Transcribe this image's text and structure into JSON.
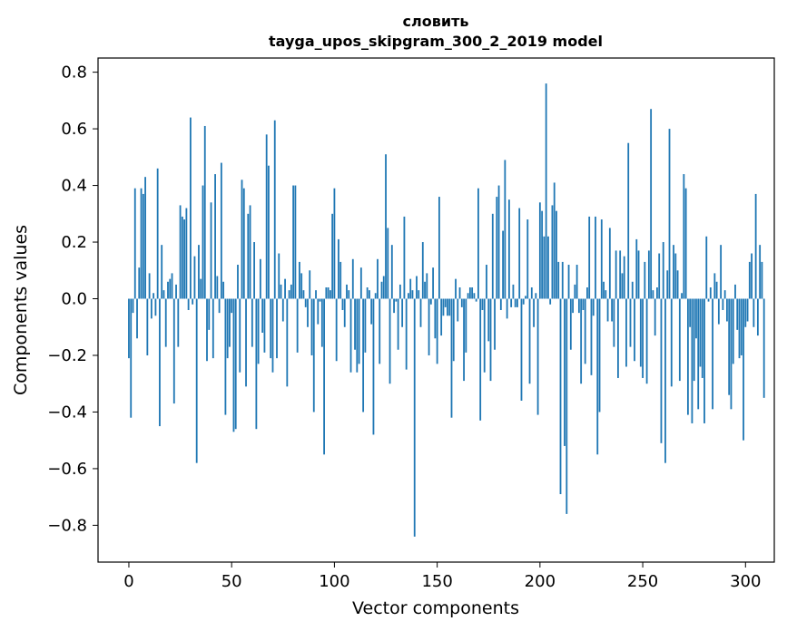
{
  "chart_data": {
    "type": "bar",
    "title": "словить",
    "subtitle": "tayga_upos_skipgram_300_2_2019 model",
    "xlabel": "Vector components",
    "ylabel": "Components values",
    "xlim": [
      -15,
      314
    ],
    "ylim": [
      -0.93,
      0.85
    ],
    "x_ticks": [
      0,
      50,
      100,
      150,
      200,
      250,
      300
    ],
    "x_tick_labels": [
      "0",
      "50",
      "100",
      "150",
      "200",
      "250",
      "300"
    ],
    "y_ticks": [
      -0.8,
      -0.6,
      -0.4,
      -0.2,
      0.0,
      0.2,
      0.4,
      0.6,
      0.8
    ],
    "y_tick_labels": [
      "−0.8",
      "−0.6",
      "−0.4",
      "−0.2",
      "0.0",
      "0.2",
      "0.4",
      "0.6",
      "0.8"
    ],
    "grid": false,
    "bar_color": "#1f77b4",
    "values": [
      -0.21,
      -0.42,
      -0.05,
      0.39,
      -0.14,
      0.11,
      0.39,
      0.37,
      0.43,
      -0.2,
      0.09,
      -0.07,
      0.02,
      -0.06,
      0.46,
      -0.45,
      0.19,
      0.03,
      -0.17,
      0.06,
      0.07,
      0.09,
      -0.37,
      0.05,
      -0.17,
      0.33,
      0.29,
      0.28,
      0.32,
      -0.04,
      0.64,
      -0.02,
      0.15,
      -0.58,
      0.19,
      0.07,
      0.4,
      0.61,
      -0.22,
      -0.11,
      0.34,
      -0.21,
      0.44,
      0.08,
      -0.05,
      0.48,
      0.06,
      -0.41,
      -0.21,
      -0.17,
      -0.05,
      -0.47,
      -0.46,
      0.12,
      -0.26,
      0.42,
      0.39,
      -0.31,
      0.3,
      0.33,
      -0.17,
      0.2,
      -0.46,
      -0.23,
      0.14,
      -0.12,
      -0.19,
      0.58,
      0.47,
      -0.21,
      -0.26,
      0.63,
      -0.21,
      0.16,
      0.05,
      -0.08,
      0.07,
      -0.31,
      0.03,
      0.05,
      0.4,
      0.4,
      -0.19,
      0.13,
      0.09,
      0.03,
      -0.03,
      -0.1,
      0.1,
      -0.2,
      -0.4,
      0.03,
      -0.09,
      -0.01,
      -0.17,
      -0.55,
      0.04,
      0.04,
      0.03,
      0.3,
      0.39,
      -0.22,
      0.21,
      0.13,
      -0.04,
      -0.1,
      0.05,
      0.03,
      -0.26,
      0.14,
      -0.18,
      -0.26,
      -0.23,
      0.11,
      -0.4,
      -0.19,
      0.04,
      0.03,
      -0.09,
      -0.48,
      0.02,
      0.14,
      -0.23,
      0.06,
      0.08,
      0.51,
      0.25,
      -0.3,
      0.19,
      -0.05,
      -0.01,
      -0.18,
      0.05,
      -0.1,
      0.29,
      -0.25,
      0.02,
      0.07,
      0.03,
      -0.84,
      0.08,
      0.03,
      -0.1,
      0.2,
      0.06,
      0.09,
      -0.2,
      -0.02,
      0.11,
      -0.14,
      -0.23,
      0.36,
      -0.13,
      -0.06,
      -0.03,
      -0.06,
      -0.06,
      -0.42,
      -0.22,
      0.07,
      -0.08,
      0.04,
      -0.03,
      -0.29,
      -0.19,
      0.02,
      0.04,
      0.04,
      0.02,
      -0.01,
      0.39,
      -0.43,
      -0.04,
      -0.26,
      0.12,
      -0.15,
      -0.29,
      0.3,
      -0.18,
      0.36,
      0.4,
      -0.04,
      0.24,
      0.49,
      -0.07,
      0.35,
      -0.03,
      0.05,
      -0.03,
      -0.03,
      0.32,
      -0.36,
      -0.02,
      0.01,
      0.28,
      -0.3,
      0.04,
      -0.1,
      0.02,
      -0.41,
      0.34,
      0.31,
      0.22,
      0.76,
      0.22,
      -0.02,
      0.33,
      0.41,
      0.31,
      0.13,
      -0.69,
      0.13,
      -0.52,
      -0.76,
      0.12,
      -0.18,
      -0.05,
      0.05,
      0.12,
      -0.05,
      -0.3,
      -0.04,
      -0.23,
      0.04,
      0.29,
      -0.27,
      -0.06,
      0.29,
      -0.55,
      -0.4,
      0.28,
      0.06,
      0.03,
      -0.08,
      0.25,
      -0.08,
      -0.17,
      0.17,
      -0.28,
      0.17,
      0.09,
      0.15,
      -0.24,
      0.55,
      -0.17,
      0.06,
      -0.22,
      0.21,
      0.17,
      -0.24,
      -0.28,
      0.13,
      -0.3,
      0.17,
      0.67,
      0.03,
      -0.13,
      0.04,
      0.16,
      -0.51,
      0.2,
      -0.58,
      0.1,
      0.6,
      -0.31,
      0.19,
      0.16,
      0.1,
      -0.29,
      0.02,
      0.44,
      0.39,
      -0.41,
      -0.1,
      -0.44,
      -0.29,
      -0.14,
      -0.39,
      -0.24,
      -0.28,
      -0.44,
      0.22,
      -0.01,
      0.04,
      -0.39,
      0.09,
      0.06,
      -0.09,
      0.19,
      -0.04,
      0.03,
      -0.08,
      -0.34,
      -0.39,
      -0.23,
      0.05,
      -0.11,
      -0.21,
      -0.2,
      -0.5,
      -0.1,
      -0.08,
      0.13,
      0.16,
      -0.1,
      0.37,
      -0.13,
      0.19,
      0.13,
      -0.35
    ]
  }
}
